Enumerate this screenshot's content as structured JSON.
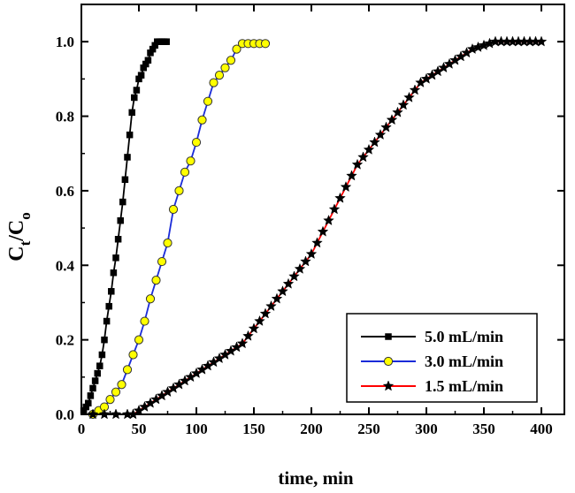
{
  "chart_data": {
    "type": "line",
    "title": "",
    "xlabel": "time, min",
    "ylabel_main": "C",
    "ylabel_sub1": "t",
    "ylabel_mid": "/C",
    "ylabel_sub2": "o",
    "xlim": [
      0,
      420
    ],
    "ylim": [
      0,
      1.1
    ],
    "xticks": [
      0,
      50,
      100,
      150,
      200,
      250,
      300,
      350,
      400
    ],
    "yticks": [
      0.0,
      0.2,
      0.4,
      0.6,
      0.8,
      1.0
    ],
    "xtick_labels": [
      "0",
      "50",
      "100",
      "150",
      "200",
      "250",
      "300",
      "350",
      "400"
    ],
    "ytick_labels": [
      "0.0",
      "0.2",
      "0.4",
      "0.6",
      "0.8",
      "1.0"
    ],
    "legend_position": "bottom-right",
    "series": [
      {
        "name": "5.0 mL/min",
        "color": "#000000",
        "marker": "square",
        "marker_fill": "#000000",
        "x": [
          2,
          4,
          6,
          8,
          10,
          12,
          14,
          16,
          18,
          20,
          22,
          24,
          26,
          28,
          30,
          32,
          34,
          36,
          38,
          40,
          42,
          44,
          46,
          48,
          50,
          52,
          54,
          56,
          58,
          60,
          62,
          64,
          66,
          68,
          70,
          72,
          74
        ],
        "y": [
          0.01,
          0.02,
          0.03,
          0.05,
          0.07,
          0.09,
          0.11,
          0.13,
          0.16,
          0.2,
          0.25,
          0.29,
          0.33,
          0.38,
          0.42,
          0.47,
          0.52,
          0.57,
          0.63,
          0.69,
          0.75,
          0.81,
          0.85,
          0.87,
          0.9,
          0.91,
          0.93,
          0.94,
          0.95,
          0.97,
          0.98,
          0.99,
          1.0,
          1.0,
          1.0,
          1.0,
          1.0
        ]
      },
      {
        "name": "3.0 mL/min",
        "color": "#1a2bd8",
        "marker": "circle",
        "marker_fill": "#ffff00",
        "x": [
          10,
          15,
          20,
          25,
          30,
          35,
          40,
          45,
          50,
          55,
          60,
          65,
          70,
          75,
          80,
          85,
          90,
          95,
          100,
          105,
          110,
          115,
          120,
          125,
          130,
          135,
          140,
          145,
          150,
          155,
          160
        ],
        "y": [
          0.0,
          0.01,
          0.02,
          0.04,
          0.06,
          0.08,
          0.12,
          0.16,
          0.2,
          0.25,
          0.31,
          0.36,
          0.41,
          0.46,
          0.55,
          0.6,
          0.65,
          0.68,
          0.73,
          0.79,
          0.84,
          0.89,
          0.91,
          0.93,
          0.95,
          0.98,
          0.995,
          0.995,
          0.995,
          0.995,
          0.995
        ]
      },
      {
        "name": "1.5 mL/min",
        "color": "#ff0000",
        "marker": "star",
        "marker_fill": "#000000",
        "x": [
          10,
          20,
          30,
          40,
          45,
          50,
          55,
          60,
          65,
          70,
          75,
          80,
          85,
          90,
          95,
          100,
          105,
          110,
          115,
          120,
          125,
          130,
          135,
          140,
          145,
          150,
          155,
          160,
          165,
          170,
          175,
          180,
          185,
          190,
          195,
          200,
          205,
          210,
          215,
          220,
          225,
          230,
          235,
          240,
          245,
          250,
          255,
          260,
          265,
          270,
          275,
          280,
          285,
          290,
          295,
          300,
          305,
          310,
          315,
          320,
          325,
          330,
          335,
          340,
          345,
          350,
          355,
          360,
          365,
          370,
          375,
          380,
          385,
          390,
          395,
          400
        ],
        "y": [
          0.0,
          0.0,
          0.0,
          0.0,
          0.0,
          0.01,
          0.02,
          0.03,
          0.04,
          0.05,
          0.06,
          0.07,
          0.08,
          0.09,
          0.1,
          0.11,
          0.12,
          0.13,
          0.14,
          0.15,
          0.16,
          0.17,
          0.18,
          0.19,
          0.21,
          0.23,
          0.25,
          0.27,
          0.29,
          0.31,
          0.33,
          0.35,
          0.37,
          0.39,
          0.41,
          0.43,
          0.46,
          0.49,
          0.52,
          0.55,
          0.58,
          0.61,
          0.64,
          0.67,
          0.69,
          0.71,
          0.73,
          0.75,
          0.77,
          0.79,
          0.81,
          0.83,
          0.85,
          0.87,
          0.89,
          0.9,
          0.91,
          0.92,
          0.93,
          0.94,
          0.95,
          0.96,
          0.97,
          0.98,
          0.985,
          0.99,
          0.995,
          1.0,
          1.0,
          1.0,
          1.0,
          1.0,
          1.0,
          1.0,
          1.0,
          1.0
        ]
      }
    ]
  }
}
